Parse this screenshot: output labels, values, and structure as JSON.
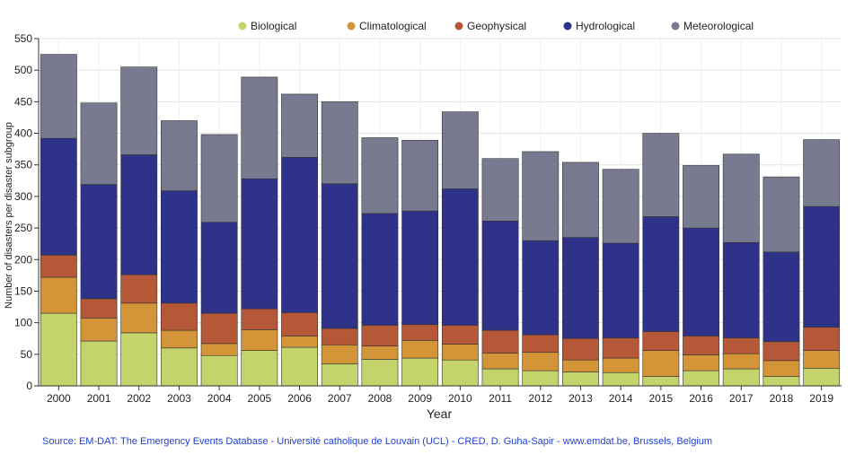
{
  "chart_data": {
    "type": "bar",
    "stacked": true,
    "title": "",
    "xlabel": "Year",
    "ylabel": "Number of disasters per  disaster subgroup",
    "ylim": [
      0,
      550
    ],
    "yticks": [
      0,
      50,
      100,
      150,
      200,
      250,
      300,
      350,
      400,
      450,
      500,
      550
    ],
    "grid": true,
    "legend_position": "top",
    "categories": [
      "2000",
      "2001",
      "2002",
      "2003",
      "2004",
      "2005",
      "2006",
      "2007",
      "2008",
      "2009",
      "2010",
      "2011",
      "2012",
      "2013",
      "2014",
      "2015",
      "2016",
      "2017",
      "2018",
      "2019"
    ],
    "series": [
      {
        "name": "Biological",
        "color": "#c5d36c",
        "values": [
          115,
          71,
          84,
          60,
          48,
          56,
          61,
          35,
          42,
          44,
          41,
          27,
          24,
          22,
          21,
          15,
          24,
          27,
          15,
          28
        ]
      },
      {
        "name": "Climatological",
        "color": "#d49438",
        "values": [
          57,
          36,
          47,
          28,
          19,
          33,
          18,
          30,
          21,
          28,
          25,
          25,
          29,
          19,
          23,
          41,
          25,
          24,
          25,
          28
        ]
      },
      {
        "name": "Geophysical",
        "color": "#b55837",
        "values": [
          35,
          31,
          45,
          43,
          48,
          33,
          37,
          26,
          33,
          25,
          30,
          36,
          28,
          34,
          32,
          30,
          30,
          25,
          30,
          37
        ]
      },
      {
        "name": "Hydrological",
        "color": "#2e3389",
        "values": [
          185,
          181,
          190,
          178,
          144,
          206,
          246,
          229,
          177,
          180,
          216,
          173,
          149,
          160,
          150,
          182,
          171,
          151,
          142,
          191
        ]
      },
      {
        "name": "Meteorological",
        "color": "#787b90",
        "values": [
          133,
          129,
          139,
          111,
          139,
          161,
          100,
          130,
          120,
          112,
          122,
          99,
          141,
          119,
          117,
          132,
          99,
          140,
          119,
          106
        ]
      }
    ]
  },
  "source_text": "Source: EM-DAT: The Emergency Events Database - Université catholique de Louvain (UCL) - CRED, D. Guha-Sapir - www.emdat.be, Brussels, Belgium"
}
